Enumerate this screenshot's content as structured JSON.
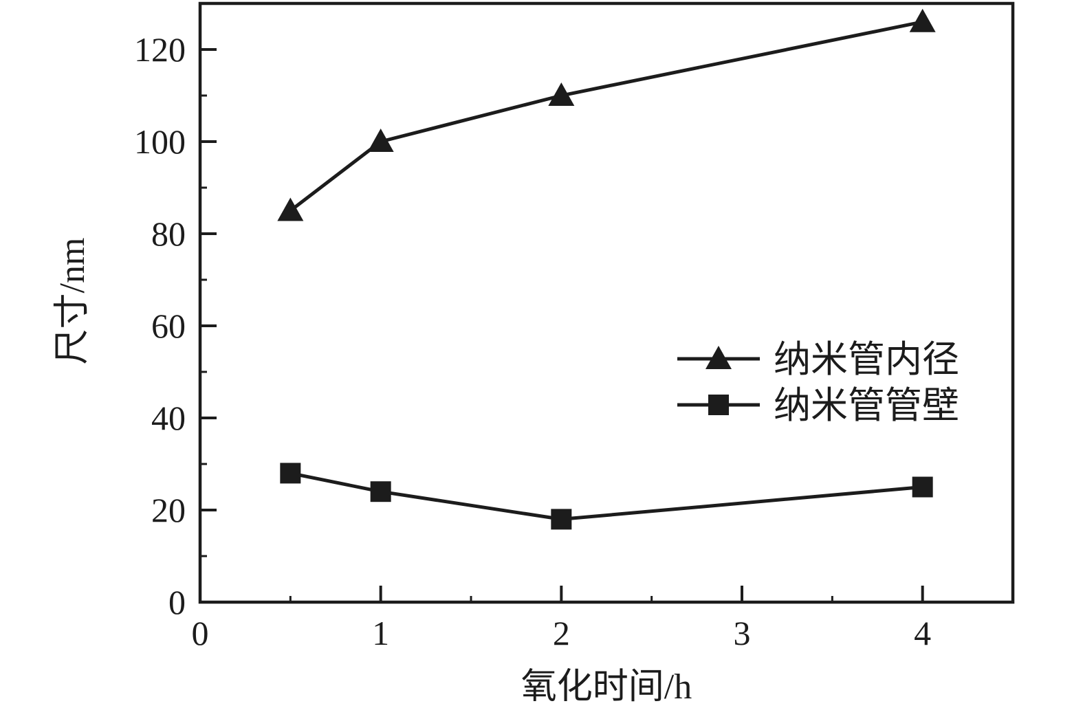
{
  "chart_data": {
    "type": "line",
    "title": "",
    "xlabel": "氧化时间/h",
    "ylabel": "尺寸/nm",
    "xlim": [
      0,
      4.5
    ],
    "ylim": [
      0,
      130
    ],
    "x_major_ticks": [
      0,
      1,
      2,
      3,
      4
    ],
    "x_minor_ticks": [
      0.5,
      1.5,
      2.5,
      3.5
    ],
    "y_major_ticks": [
      0,
      20,
      40,
      60,
      80,
      100,
      120
    ],
    "y_minor_ticks": [
      10,
      30,
      50,
      70,
      90,
      110
    ],
    "x": [
      0.5,
      1,
      2,
      4
    ],
    "series": [
      {
        "name": "纳米管内径",
        "marker": "triangle",
        "values": [
          85,
          100,
          110,
          126
        ]
      },
      {
        "name": "纳米管管壁",
        "marker": "square",
        "values": [
          28,
          24,
          18,
          25
        ]
      }
    ],
    "legend_position": "inside-middle-right",
    "grid": "off",
    "ink_color": "#1c1c1c",
    "background_color": "#ffffff"
  }
}
